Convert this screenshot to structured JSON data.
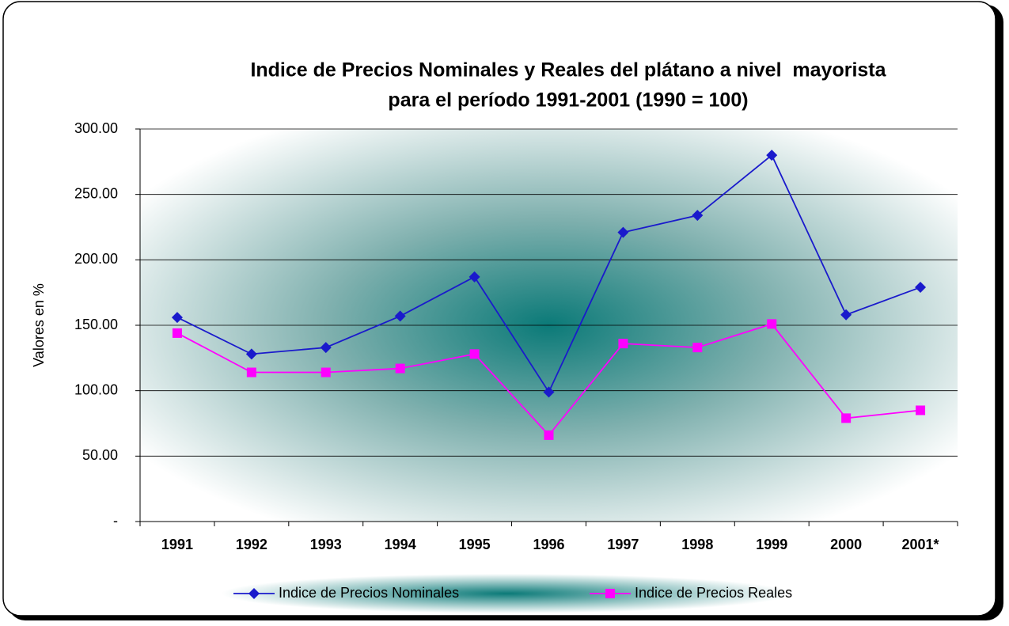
{
  "chart_data": {
    "type": "line",
    "title": [
      "Indice de Precios Nominales y Reales del plátano a nivel  mayorista",
      "para el período 1991-2001 (1990 = 100)"
    ],
    "y_label": "Valores en %",
    "categories": [
      "1991",
      "1992",
      "1993",
      "1994",
      "1995",
      "1996",
      "1997",
      "1998",
      "1999",
      "2000",
      "2001*"
    ],
    "series": [
      {
        "name": "Indice de Precios Nominales",
        "color": "#1a1acc",
        "marker": "diamond",
        "values": [
          156,
          128,
          133,
          157,
          187,
          99,
          221,
          234,
          280,
          158,
          179
        ]
      },
      {
        "name": "Indice de Precios Reales",
        "color": "#ff00ff",
        "marker": "square",
        "values": [
          144,
          114,
          114,
          117,
          128,
          66,
          136,
          133,
          151,
          79,
          85
        ]
      }
    ],
    "ylim": [
      0,
      300
    ],
    "yticks": [
      {
        "value": 0,
        "label": "-"
      },
      {
        "value": 50,
        "label": "50.00"
      },
      {
        "value": 100,
        "label": "100.00"
      },
      {
        "value": 150,
        "label": "150.00"
      },
      {
        "value": 200,
        "label": "200.00"
      },
      {
        "value": 250,
        "label": "250.00"
      },
      {
        "value": 300,
        "label": "300.00"
      }
    ],
    "grid": true,
    "legend": "bottom"
  }
}
